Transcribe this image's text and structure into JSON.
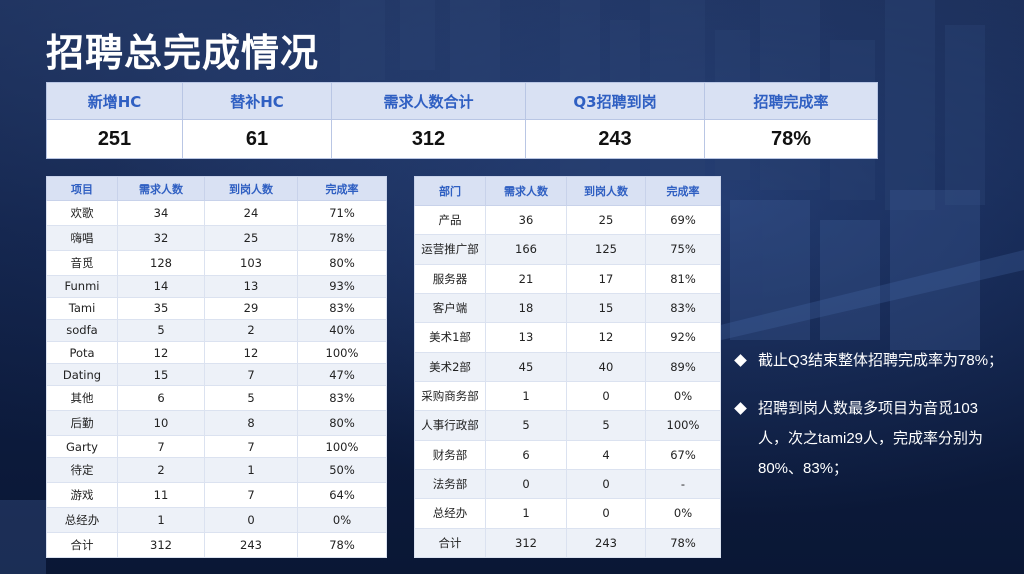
{
  "title": "招聘总完成情况",
  "summary": {
    "headers": [
      "新增HC",
      "替补HC",
      "需求人数合计",
      "Q3招聘到岗",
      "招聘完成率"
    ],
    "values": [
      "251",
      "61",
      "312",
      "243",
      "78%"
    ]
  },
  "project_table": {
    "headers": [
      "项目",
      "需求人数",
      "到岗人数",
      "完成率"
    ],
    "rows": [
      [
        "欢歌",
        "34",
        "24",
        "71%"
      ],
      [
        "嗨唱",
        "32",
        "25",
        "78%"
      ],
      [
        "音觅",
        "128",
        "103",
        "80%"
      ],
      [
        "Funmi",
        "14",
        "13",
        "93%"
      ],
      [
        "Tami",
        "35",
        "29",
        "83%"
      ],
      [
        "sodfa",
        "5",
        "2",
        "40%"
      ],
      [
        "Pota",
        "12",
        "12",
        "100%"
      ],
      [
        "Dating",
        "15",
        "7",
        "47%"
      ],
      [
        "其他",
        "6",
        "5",
        "83%"
      ],
      [
        "后勤",
        "10",
        "8",
        "80%"
      ],
      [
        "Garty",
        "7",
        "7",
        "100%"
      ],
      [
        "待定",
        "2",
        "1",
        "50%"
      ],
      [
        "游戏",
        "11",
        "7",
        "64%"
      ],
      [
        "总经办",
        "1",
        "0",
        "0%"
      ],
      [
        "合计",
        "312",
        "243",
        "78%"
      ]
    ]
  },
  "dept_table": {
    "headers": [
      "部门",
      "需求人数",
      "到岗人数",
      "完成率"
    ],
    "rows": [
      [
        "产品",
        "36",
        "25",
        "69%"
      ],
      [
        "运营推广部",
        "166",
        "125",
        "75%"
      ],
      [
        "服务器",
        "21",
        "17",
        "81%"
      ],
      [
        "客户端",
        "18",
        "15",
        "83%"
      ],
      [
        "美术1部",
        "13",
        "12",
        "92%"
      ],
      [
        "美术2部",
        "45",
        "40",
        "89%"
      ],
      [
        "采购商务部",
        "1",
        "0",
        "0%"
      ],
      [
        "人事行政部",
        "5",
        "5",
        "100%"
      ],
      [
        "财务部",
        "6",
        "4",
        "67%"
      ],
      [
        "法务部",
        "0",
        "0",
        "-"
      ],
      [
        "总经办",
        "1",
        "0",
        "0%"
      ],
      [
        "合计",
        "312",
        "243",
        "78%"
      ]
    ]
  },
  "notes": [
    "截止Q3结束整体招聘完成率为78%；",
    "招聘到岗人数最多项目为音觅103人，次之tami29人，完成率分别为80%、83%；"
  ]
}
